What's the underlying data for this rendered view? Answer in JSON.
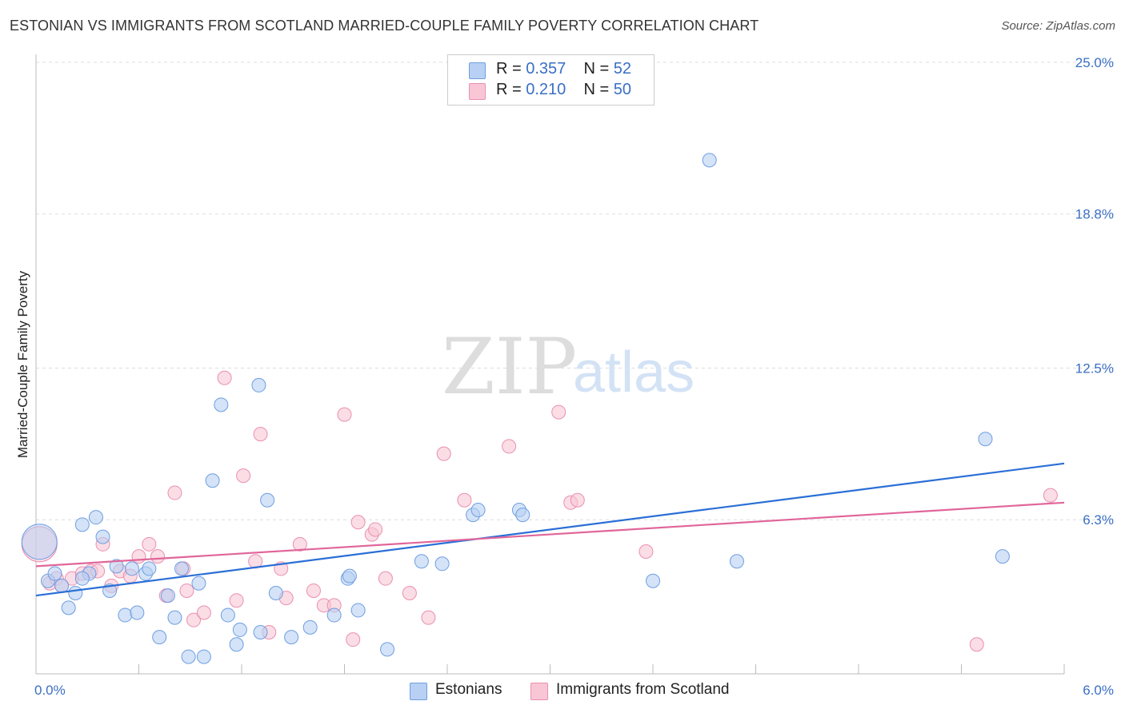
{
  "header": {
    "title": "ESTONIAN VS IMMIGRANTS FROM SCOTLAND MARRIED-COUPLE FAMILY POVERTY CORRELATION CHART",
    "source": "Source: ZipAtlas.com"
  },
  "watermark": {
    "zip": "ZIP",
    "atlas": "atlas"
  },
  "legend": {
    "rows": [
      {
        "r_label": "R =",
        "r_value": "0.357",
        "n_label": "N =",
        "n_value": "52"
      },
      {
        "r_label": "R =",
        "r_value": "0.210",
        "n_label": "N =",
        "n_value": "50"
      }
    ]
  },
  "chart_data": {
    "type": "scatter",
    "title": "ESTONIAN VS IMMIGRANTS FROM SCOTLAND MARRIED-COUPLE FAMILY POVERTY CORRELATION CHART",
    "xlabel": "",
    "ylabel": "Married-Couple Family Poverty",
    "xlim": [
      0,
      6.0
    ],
    "ylim": [
      0,
      25.0
    ],
    "x_tick_labels": [
      "0.0%",
      "6.0%"
    ],
    "y_ticks": [
      6.3,
      12.5,
      18.8,
      25.0
    ],
    "y_tick_labels": [
      "6.3%",
      "12.5%",
      "18.8%",
      "25.0%"
    ],
    "grid": true,
    "legend_position": "top-center",
    "colors": {
      "blue_fill": "#b8d0f3",
      "blue_stroke": "#6f9ee0",
      "blue_line": "#2a6fd6",
      "pink_fill": "#f9c6d6",
      "pink_stroke": "#ea8fb0",
      "pink_line": "#e0669a",
      "axis_label": "#3a6fc4"
    },
    "series": [
      {
        "name": "Estonians",
        "r": 0.357,
        "n": 52,
        "trend": {
          "x": [
            0,
            6.0
          ],
          "y": [
            3.2,
            8.6
          ]
        },
        "points": [
          {
            "x": 0.02,
            "y": 5.4,
            "big": true
          },
          {
            "x": 0.07,
            "y": 3.8
          },
          {
            "x": 0.11,
            "y": 4.1
          },
          {
            "x": 0.15,
            "y": 3.6
          },
          {
            "x": 0.19,
            "y": 2.7
          },
          {
            "x": 0.23,
            "y": 3.3
          },
          {
            "x": 0.27,
            "y": 6.1
          },
          {
            "x": 0.31,
            "y": 4.1
          },
          {
            "x": 0.35,
            "y": 6.4
          },
          {
            "x": 0.39,
            "y": 5.6
          },
          {
            "x": 0.43,
            "y": 3.4
          },
          {
            "x": 0.47,
            "y": 4.4
          },
          {
            "x": 0.52,
            "y": 2.4
          },
          {
            "x": 0.56,
            "y": 4.3
          },
          {
            "x": 0.59,
            "y": 2.5
          },
          {
            "x": 0.64,
            "y": 4.1
          },
          {
            "x": 0.66,
            "y": 4.3
          },
          {
            "x": 0.72,
            "y": 1.5
          },
          {
            "x": 0.77,
            "y": 3.2
          },
          {
            "x": 0.81,
            "y": 2.3
          },
          {
            "x": 0.85,
            "y": 4.3
          },
          {
            "x": 0.89,
            "y": 0.7
          },
          {
            "x": 0.95,
            "y": 3.7
          },
          {
            "x": 0.98,
            "y": 0.7
          },
          {
            "x": 1.03,
            "y": 7.9
          },
          {
            "x": 1.08,
            "y": 11.0
          },
          {
            "x": 1.12,
            "y": 2.4
          },
          {
            "x": 1.17,
            "y": 1.2
          },
          {
            "x": 1.19,
            "y": 1.8
          },
          {
            "x": 1.31,
            "y": 1.7
          },
          {
            "x": 1.35,
            "y": 7.1
          },
          {
            "x": 1.3,
            "y": 11.8
          },
          {
            "x": 1.4,
            "y": 3.3
          },
          {
            "x": 1.49,
            "y": 1.5
          },
          {
            "x": 1.6,
            "y": 1.9
          },
          {
            "x": 1.74,
            "y": 2.4
          },
          {
            "x": 1.82,
            "y": 3.9
          },
          {
            "x": 1.83,
            "y": 4.0
          },
          {
            "x": 1.88,
            "y": 2.6
          },
          {
            "x": 2.05,
            "y": 1.0
          },
          {
            "x": 2.25,
            "y": 4.6
          },
          {
            "x": 2.37,
            "y": 4.5
          },
          {
            "x": 2.55,
            "y": 6.5
          },
          {
            "x": 2.58,
            "y": 6.7
          },
          {
            "x": 2.82,
            "y": 6.7
          },
          {
            "x": 2.84,
            "y": 6.5
          },
          {
            "x": 3.6,
            "y": 3.8
          },
          {
            "x": 3.93,
            "y": 21.0
          },
          {
            "x": 4.09,
            "y": 4.6
          },
          {
            "x": 5.54,
            "y": 9.6
          },
          {
            "x": 5.64,
            "y": 4.8
          },
          {
            "x": 0.27,
            "y": 3.9
          }
        ]
      },
      {
        "name": "Immigrants from Scotland",
        "r": 0.21,
        "n": 50,
        "trend": {
          "x": [
            0,
            6.0
          ],
          "y": [
            4.4,
            7.0
          ]
        },
        "points": [
          {
            "x": 0.02,
            "y": 5.3,
            "big": true
          },
          {
            "x": 0.08,
            "y": 3.7
          },
          {
            "x": 0.12,
            "y": 3.9
          },
          {
            "x": 0.21,
            "y": 3.9
          },
          {
            "x": 0.27,
            "y": 4.1
          },
          {
            "x": 0.32,
            "y": 4.2
          },
          {
            "x": 0.39,
            "y": 5.3
          },
          {
            "x": 0.44,
            "y": 3.6
          },
          {
            "x": 0.49,
            "y": 4.2
          },
          {
            "x": 0.55,
            "y": 4.0
          },
          {
            "x": 0.6,
            "y": 4.8
          },
          {
            "x": 0.66,
            "y": 5.3
          },
          {
            "x": 0.71,
            "y": 4.8
          },
          {
            "x": 0.76,
            "y": 3.2
          },
          {
            "x": 0.81,
            "y": 7.4
          },
          {
            "x": 0.86,
            "y": 4.3
          },
          {
            "x": 0.88,
            "y": 3.4
          },
          {
            "x": 0.92,
            "y": 2.2
          },
          {
            "x": 0.98,
            "y": 2.5
          },
          {
            "x": 1.1,
            "y": 12.1
          },
          {
            "x": 1.17,
            "y": 3.0
          },
          {
            "x": 1.21,
            "y": 8.1
          },
          {
            "x": 1.28,
            "y": 4.6
          },
          {
            "x": 1.31,
            "y": 9.8
          },
          {
            "x": 1.36,
            "y": 1.7
          },
          {
            "x": 1.43,
            "y": 4.3
          },
          {
            "x": 1.46,
            "y": 3.1
          },
          {
            "x": 1.54,
            "y": 5.3
          },
          {
            "x": 1.62,
            "y": 3.4
          },
          {
            "x": 1.68,
            "y": 2.8
          },
          {
            "x": 1.74,
            "y": 2.8
          },
          {
            "x": 1.8,
            "y": 10.6
          },
          {
            "x": 1.85,
            "y": 1.4
          },
          {
            "x": 1.88,
            "y": 6.2
          },
          {
            "x": 1.96,
            "y": 5.7
          },
          {
            "x": 1.98,
            "y": 5.9
          },
          {
            "x": 2.04,
            "y": 3.9
          },
          {
            "x": 2.18,
            "y": 3.3
          },
          {
            "x": 2.29,
            "y": 2.3
          },
          {
            "x": 2.38,
            "y": 9.0
          },
          {
            "x": 2.5,
            "y": 7.1
          },
          {
            "x": 2.76,
            "y": 9.3
          },
          {
            "x": 3.05,
            "y": 10.7
          },
          {
            "x": 3.12,
            "y": 7.0
          },
          {
            "x": 3.16,
            "y": 7.1
          },
          {
            "x": 3.56,
            "y": 5.0
          },
          {
            "x": 5.49,
            "y": 1.2
          },
          {
            "x": 5.92,
            "y": 7.3
          },
          {
            "x": 0.15,
            "y": 3.6
          },
          {
            "x": 0.36,
            "y": 4.2
          }
        ]
      }
    ]
  },
  "bottom_legend": {
    "items": [
      "Estonians",
      "Immigrants from Scotland"
    ]
  }
}
